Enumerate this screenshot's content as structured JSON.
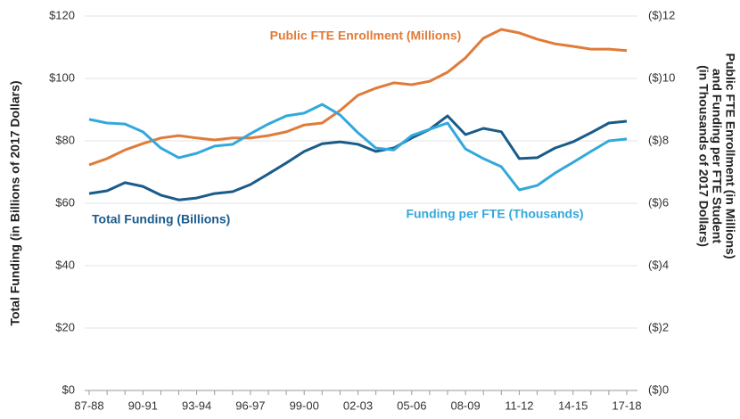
{
  "chart_data": {
    "type": "line",
    "y_label": "Total Funding (in Billions of 2017 Dollars)",
    "y2_label": [
      "Public FTE Enrollment (in Millions)",
      "and Funding per FTE Student",
      "(in Thousands of 2017 Dollars)"
    ],
    "categories": [
      "87-88",
      null,
      null,
      "90-91",
      null,
      null,
      "93-94",
      null,
      null,
      "96-97",
      null,
      null,
      "99-00",
      null,
      null,
      "02-03",
      null,
      null,
      "05-06",
      null,
      null,
      "08-09",
      null,
      null,
      "11-12",
      null,
      null,
      "14-15",
      null,
      null,
      "17-18"
    ],
    "series": [
      {
        "name": "Public FTE Enrollment (Millions)",
        "color": "#e07b39",
        "axis": "y2",
        "values": [
          7.23,
          7.43,
          7.71,
          7.91,
          8.09,
          8.17,
          8.09,
          8.03,
          8.09,
          8.09,
          8.17,
          8.29,
          8.51,
          8.57,
          8.97,
          9.46,
          9.69,
          9.86,
          9.8,
          9.91,
          10.2,
          10.66,
          11.29,
          11.57,
          11.46,
          11.26,
          11.11,
          11.03,
          10.94,
          10.94,
          10.89
        ]
      },
      {
        "name": "Total Funding (Billions)",
        "color": "#1a5b8a",
        "values": [
          63.1,
          64,
          66.6,
          65.4,
          62.6,
          61.1,
          61.7,
          63.1,
          63.7,
          66,
          69.4,
          72.9,
          76.6,
          79.1,
          79.7,
          78.9,
          76.6,
          77.7,
          80.9,
          83.7,
          88,
          82,
          84,
          82.9,
          74.3,
          74.6,
          77.7,
          79.7,
          82.6,
          85.7,
          86.3
        ]
      },
      {
        "name": "Funding per FTE (Thousands)",
        "color": "#33a8dc",
        "axis": "y2",
        "values": [
          8.69,
          8.57,
          8.54,
          8.29,
          7.77,
          7.46,
          7.6,
          7.83,
          7.89,
          8.23,
          8.54,
          8.8,
          8.89,
          9.17,
          8.83,
          8.26,
          7.77,
          7.71,
          8.17,
          8.37,
          8.57,
          7.74,
          7.43,
          7.17,
          6.43,
          6.57,
          6.97,
          7.31,
          7.66,
          8,
          8.06
        ]
      }
    ],
    "ylim": [
      0,
      120
    ],
    "yticks": [
      {
        "value": 0,
        "label": "$0"
      },
      {
        "value": 20,
        "label": "$20"
      },
      {
        "value": 40,
        "label": "$40"
      },
      {
        "value": 60,
        "label": "$60"
      },
      {
        "value": 80,
        "label": "$80"
      },
      {
        "value": 100,
        "label": "$100"
      },
      {
        "value": 120,
        "label": "$120"
      }
    ],
    "y2lim": [
      0,
      12
    ],
    "y2ticks": [
      {
        "value": 0,
        "label": "($)0"
      },
      {
        "value": 2,
        "label": "($)2"
      },
      {
        "value": 4,
        "label": "($)4"
      },
      {
        "value": 6,
        "label": "($)6"
      },
      {
        "value": 8,
        "label": "($)8"
      },
      {
        "value": 10,
        "label": "($)10"
      },
      {
        "value": 12,
        "label": "($)12"
      }
    ],
    "grid": true
  }
}
